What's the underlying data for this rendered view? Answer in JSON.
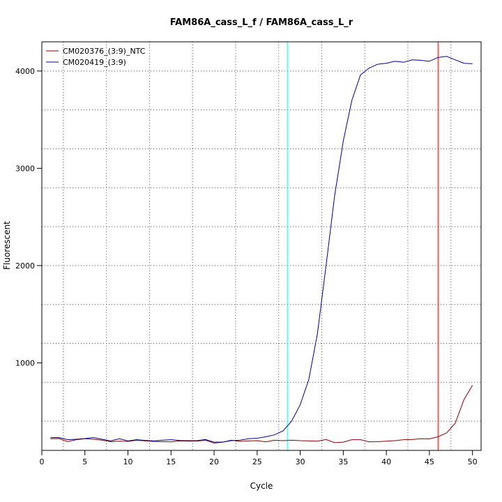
{
  "chart_data": {
    "type": "line",
    "title": "FAM86A_cass_L_f / FAM86A_cass_L_r",
    "xlabel": "Cycle",
    "ylabel": "Fluorescent",
    "xlim": [
      0,
      51
    ],
    "ylim": [
      100,
      4300
    ],
    "xticks": [
      0,
      5,
      10,
      15,
      20,
      25,
      30,
      35,
      40,
      45,
      50
    ],
    "yticks": [
      1000,
      2000,
      3000,
      4000
    ],
    "grid": {
      "vertical": [
        2.5,
        7.5,
        12.5,
        17.5,
        22.5,
        27.5,
        32.5,
        37.5,
        42.5,
        47.5
      ],
      "horizontal": [
        400,
        800,
        1200,
        1600,
        2000,
        2400,
        2800,
        3200,
        3600,
        4000
      ]
    },
    "threshold_lines": [
      {
        "x": 28.5,
        "color": "#00ffff"
      },
      {
        "x": 46.0,
        "color": "#ff0000"
      }
    ],
    "legend": {
      "position": "top-left"
    },
    "series": [
      {
        "name": "CM020376_(3:9)_NTC",
        "color": "#8b0000",
        "x": [
          1,
          2,
          3,
          4,
          5,
          6,
          7,
          8,
          9,
          10,
          11,
          12,
          13,
          14,
          15,
          16,
          17,
          18,
          19,
          20,
          21,
          22,
          23,
          24,
          25,
          26,
          27,
          28,
          29,
          30,
          31,
          32,
          33,
          34,
          35,
          36,
          37,
          38,
          39,
          40,
          41,
          42,
          43,
          44,
          45,
          46,
          47,
          48,
          49,
          50
        ],
        "y": [
          220,
          222,
          190,
          210,
          220,
          215,
          205,
          190,
          195,
          192,
          205,
          198,
          192,
          190,
          188,
          198,
          195,
          196,
          205,
          175,
          185,
          205,
          192,
          198,
          200,
          188,
          205,
          200,
          205,
          200,
          198,
          195,
          212,
          180,
          185,
          210,
          210,
          188,
          190,
          195,
          200,
          210,
          212,
          220,
          218,
          240,
          280,
          380,
          620,
          770
        ]
      },
      {
        "name": "CM020419_(3:9)",
        "color": "#00008b",
        "x": [
          1,
          2,
          3,
          4,
          5,
          6,
          7,
          8,
          9,
          10,
          11,
          12,
          13,
          14,
          15,
          16,
          17,
          18,
          19,
          20,
          21,
          22,
          23,
          24,
          25,
          26,
          27,
          28,
          29,
          30,
          31,
          32,
          33,
          34,
          35,
          36,
          37,
          38,
          39,
          40,
          41,
          42,
          43,
          44,
          45,
          46,
          47,
          48,
          49,
          50
        ],
        "y": [
          232,
          232,
          210,
          215,
          222,
          232,
          215,
          198,
          220,
          198,
          210,
          203,
          198,
          205,
          210,
          202,
          200,
          200,
          212,
          185,
          185,
          200,
          205,
          220,
          225,
          240,
          260,
          300,
          400,
          570,
          830,
          1300,
          2000,
          2720,
          3280,
          3700,
          3960,
          4030,
          4070,
          4080,
          4100,
          4090,
          4115,
          4110,
          4100,
          4140,
          4150,
          4115,
          4080,
          4075
        ]
      }
    ]
  }
}
